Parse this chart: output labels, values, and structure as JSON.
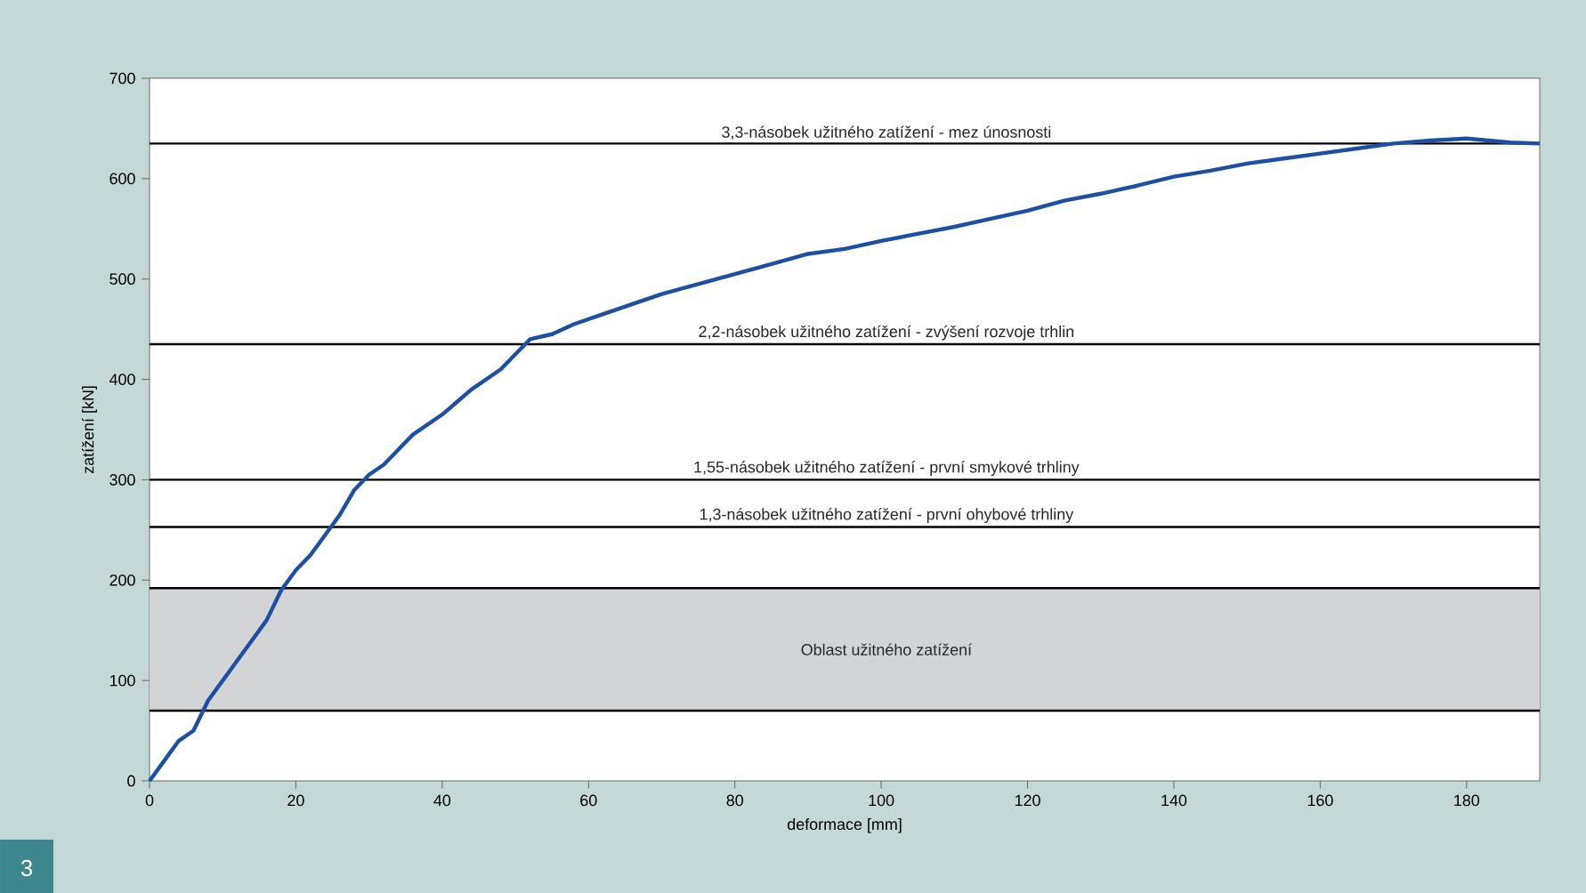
{
  "chart_data": {
    "type": "line",
    "xlabel": "deformace [mm]",
    "ylabel": "zatížení [kN]",
    "xlim": [
      0,
      190
    ],
    "ylim": [
      0,
      700
    ],
    "xticks": [
      0,
      20,
      40,
      60,
      80,
      100,
      120,
      140,
      160,
      180
    ],
    "yticks": [
      0,
      100,
      200,
      300,
      400,
      500,
      600,
      700
    ],
    "series": [
      {
        "color": "#1d4fa3",
        "x": [
          0,
          2,
          4,
          6,
          8,
          10,
          12,
          14,
          16,
          18,
          20,
          22,
          24,
          26,
          28,
          30,
          32,
          34,
          36,
          40,
          44,
          48,
          50,
          52,
          55,
          58,
          62,
          66,
          70,
          75,
          80,
          85,
          90,
          95,
          100,
          105,
          110,
          115,
          120,
          125,
          130,
          135,
          140,
          145,
          150,
          155,
          160,
          165,
          170,
          175,
          180,
          183,
          186,
          190
        ],
        "values": [
          0,
          20,
          40,
          50,
          80,
          100,
          120,
          140,
          160,
          190,
          210,
          225,
          245,
          265,
          290,
          305,
          315,
          330,
          345,
          365,
          390,
          410,
          425,
          440,
          445,
          455,
          465,
          475,
          485,
          495,
          505,
          515,
          525,
          530,
          538,
          545,
          552,
          560,
          568,
          578,
          585,
          593,
          602,
          608,
          615,
          620,
          625,
          630,
          635,
          638,
          640,
          638,
          636,
          635
        ]
      }
    ],
    "ref_lines": [
      {
        "axis": "y",
        "value": 635,
        "label": "3,3-násobek užitného zatížení - mez únosnosti",
        "color": "#000000"
      },
      {
        "axis": "y",
        "value": 435,
        "label": "2,2-násobek užitného zatížení - zvýšení rozvoje trhlin",
        "color": "#000000"
      },
      {
        "axis": "y",
        "value": 300,
        "label": "1,55-násobek užitného zatížení - první smykové trhliny",
        "color": "#000000"
      },
      {
        "axis": "y",
        "value": 253,
        "label": "1,3-násobek užitného zatížení - první ohybové trhliny",
        "color": "#000000"
      }
    ],
    "bands": [
      {
        "axis": "y",
        "from": 70,
        "to": 192,
        "label": "Oblast užitného zatížení",
        "color": "#d3d4d6"
      }
    ],
    "annotations": [
      "3"
    ],
    "grid": false,
    "marker": "none",
    "line_style": "solid"
  }
}
